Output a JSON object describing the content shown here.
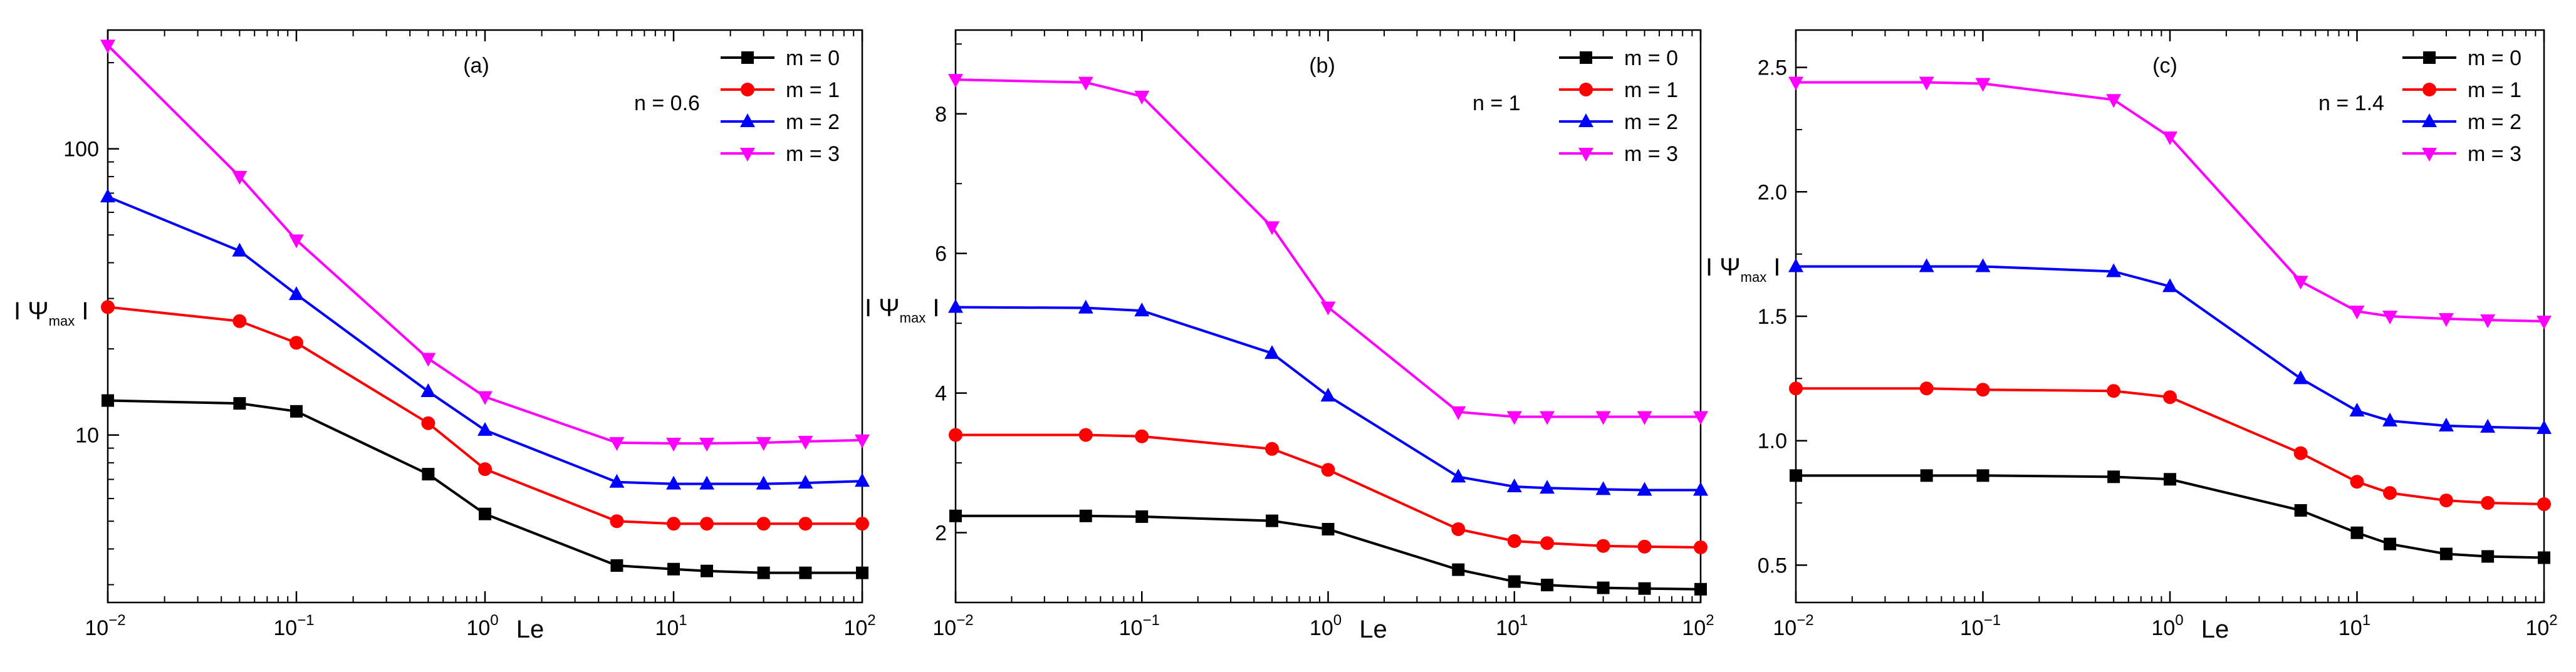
{
  "colors": {
    "m0": "#000000",
    "m1": "#ff0000",
    "m2": "#0000ff",
    "m3": "#ff00ff"
  },
  "chart_data": [
    {
      "type": "line",
      "panel_label": "(a)",
      "annotation": "n = 0.6",
      "xscale": "log",
      "yscale": "log",
      "xlabel": "Le",
      "ylabel": {
        "outer": "I Ψ",
        "sub": "max",
        "tail": " I"
      },
      "xlim": [
        0.01,
        100
      ],
      "ylim": [
        2.6,
        260
      ],
      "yticks": [
        10,
        100
      ],
      "yticklabels": [
        "10",
        "100"
      ],
      "x": [
        0.01,
        0.05,
        0.1,
        0.5,
        1,
        5,
        10,
        15,
        30,
        50,
        100
      ],
      "series": [
        {
          "name": "m = 0",
          "color": "#000000",
          "marker": "square",
          "values": [
            13.2,
            12.9,
            12.1,
            7.3,
            5.3,
            3.5,
            3.4,
            3.35,
            3.3,
            3.3,
            3.3
          ]
        },
        {
          "name": "m = 1",
          "color": "#ff0000",
          "marker": "circle",
          "values": [
            28,
            25,
            21,
            11.0,
            7.6,
            5.0,
            4.9,
            4.9,
            4.9,
            4.9,
            4.9
          ]
        },
        {
          "name": "m = 2",
          "color": "#0000ff",
          "marker": "triangle-up",
          "values": [
            68,
            44,
            31,
            14.2,
            10.4,
            6.85,
            6.75,
            6.75,
            6.75,
            6.8,
            6.9
          ]
        },
        {
          "name": "m = 3",
          "color": "#ff00ff",
          "marker": "triangle-down",
          "values": [
            230,
            80,
            48,
            18.5,
            13.6,
            9.4,
            9.35,
            9.35,
            9.4,
            9.5,
            9.6
          ]
        }
      ]
    },
    {
      "type": "line",
      "panel_label": "(b)",
      "annotation": "n = 1",
      "xscale": "log",
      "yscale": "linear",
      "xlabel": "Le",
      "ylabel": {
        "outer": "I Ψ",
        "sub": "max",
        "tail": " I"
      },
      "xlim": [
        0.01,
        100
      ],
      "ylim": [
        1.0,
        9.2
      ],
      "yticks": [
        2,
        4,
        6,
        8
      ],
      "yticklabels": [
        "2",
        "4",
        "6",
        "8"
      ],
      "x": [
        0.01,
        0.05,
        0.1,
        0.5,
        1,
        5,
        10,
        15,
        30,
        50,
        100
      ],
      "series": [
        {
          "name": "m = 0",
          "color": "#000000",
          "marker": "square",
          "values": [
            2.24,
            2.24,
            2.23,
            2.17,
            2.05,
            1.47,
            1.3,
            1.25,
            1.21,
            1.2,
            1.19
          ]
        },
        {
          "name": "m = 1",
          "color": "#ff0000",
          "marker": "circle",
          "values": [
            3.4,
            3.4,
            3.38,
            3.2,
            2.9,
            2.05,
            1.88,
            1.85,
            1.81,
            1.8,
            1.79
          ]
        },
        {
          "name": "m = 2",
          "color": "#0000ff",
          "marker": "triangle-up",
          "values": [
            5.23,
            5.22,
            5.18,
            4.57,
            3.96,
            2.8,
            2.66,
            2.64,
            2.62,
            2.61,
            2.61
          ]
        },
        {
          "name": "m = 3",
          "color": "#ff00ff",
          "marker": "triangle-down",
          "values": [
            8.49,
            8.45,
            8.25,
            6.38,
            5.23,
            3.73,
            3.66,
            3.66,
            3.66,
            3.66,
            3.66
          ]
        }
      ]
    },
    {
      "type": "line",
      "panel_label": "(c)",
      "annotation": "n = 1.4",
      "xscale": "log",
      "yscale": "linear",
      "xlabel": "Le",
      "ylabel": {
        "outer": "I Ψ",
        "sub": "max",
        "tail": " I"
      },
      "xlim": [
        0.01,
        100
      ],
      "ylim": [
        0.35,
        2.65
      ],
      "yticks": [
        0.5,
        1.0,
        1.5,
        2.0,
        2.5
      ],
      "yticklabels": [
        "0.5",
        "1.0",
        "1.5",
        "2.0",
        "2.5"
      ],
      "x": [
        0.01,
        0.05,
        0.1,
        0.5,
        1,
        5,
        10,
        15,
        30,
        50,
        100
      ],
      "series": [
        {
          "name": "m = 0",
          "color": "#000000",
          "marker": "square",
          "values": [
            0.86,
            0.86,
            0.86,
            0.855,
            0.845,
            0.72,
            0.63,
            0.585,
            0.545,
            0.535,
            0.53
          ]
        },
        {
          "name": "m = 1",
          "color": "#ff0000",
          "marker": "circle",
          "values": [
            1.21,
            1.21,
            1.205,
            1.2,
            1.175,
            0.95,
            0.835,
            0.79,
            0.76,
            0.75,
            0.745
          ]
        },
        {
          "name": "m = 2",
          "color": "#0000ff",
          "marker": "triangle-up",
          "values": [
            1.7,
            1.7,
            1.7,
            1.68,
            1.62,
            1.25,
            1.12,
            1.08,
            1.06,
            1.055,
            1.05
          ]
        },
        {
          "name": "m = 3",
          "color": "#ff00ff",
          "marker": "triangle-down",
          "values": [
            2.44,
            2.44,
            2.435,
            2.37,
            2.22,
            1.64,
            1.52,
            1.5,
            1.49,
            1.485,
            1.48
          ]
        }
      ]
    }
  ]
}
